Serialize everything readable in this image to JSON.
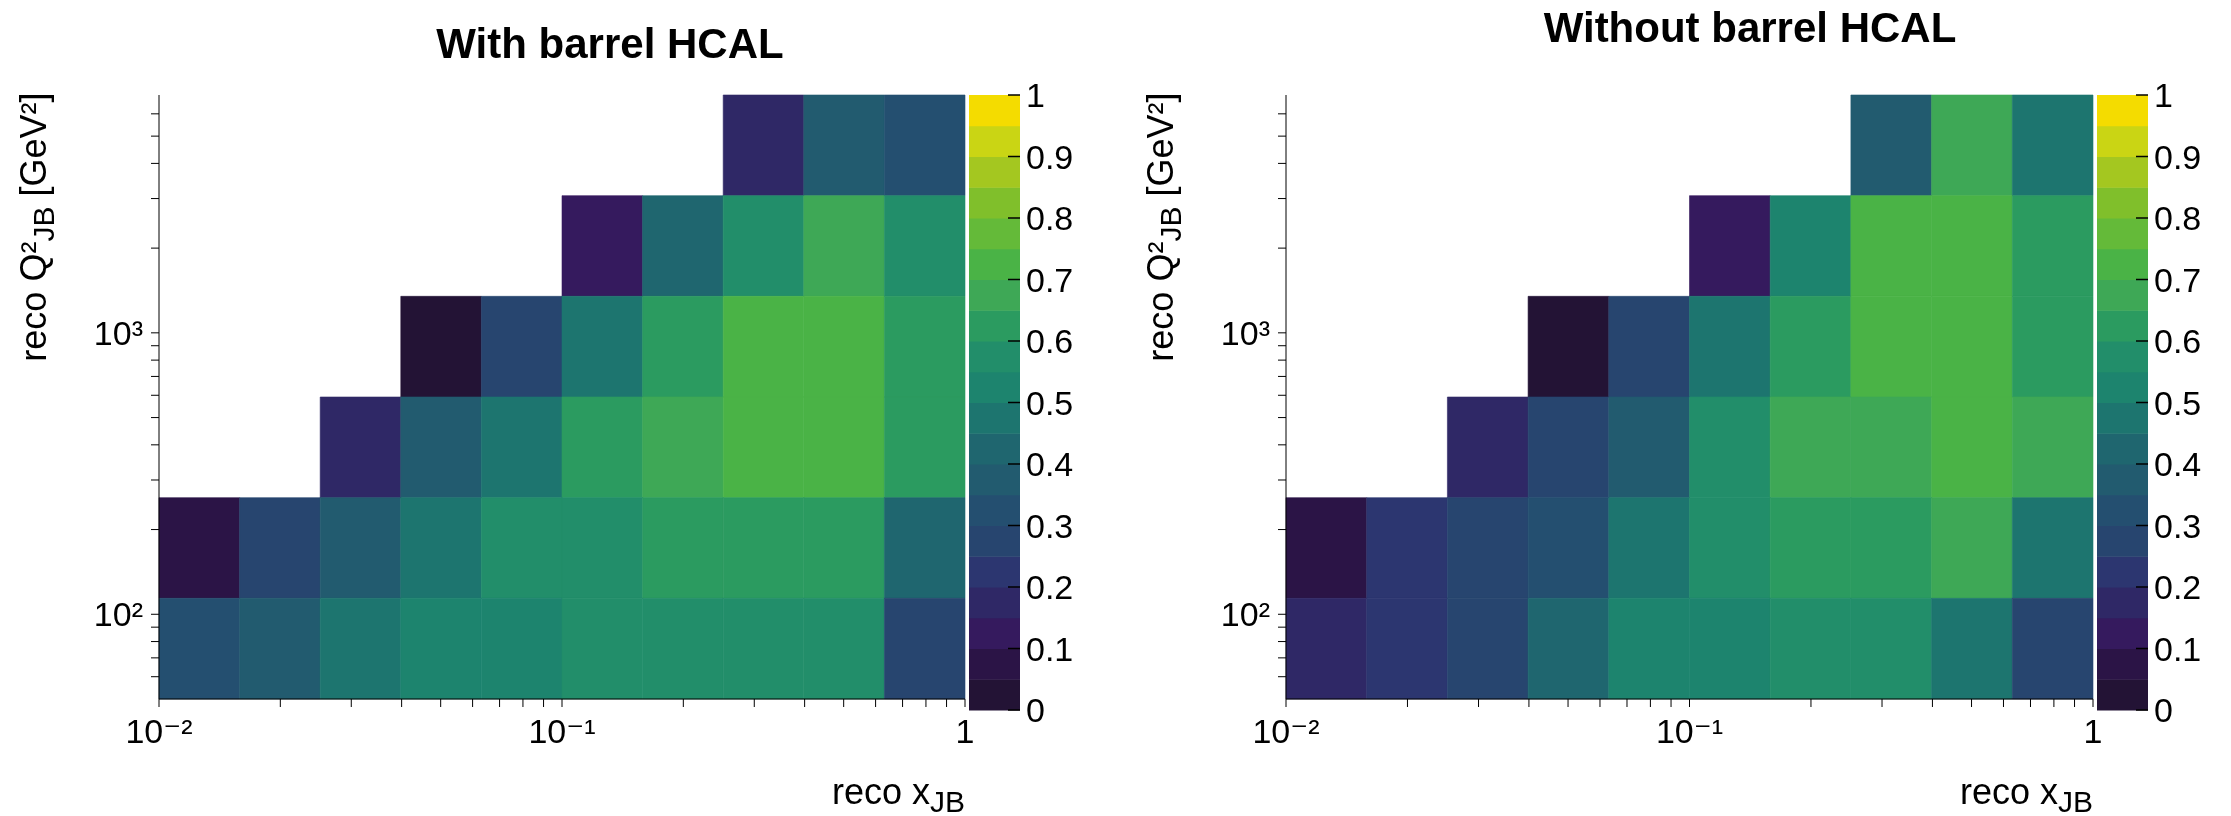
{
  "chart_data": [
    {
      "type": "heatmap",
      "title": "With barrel HCAL",
      "xlabel": "reco x$_{JB}$",
      "ylabel": "reco Q²$_{JB}$ [GeV²]",
      "log": "xy",
      "xlim": [
        0.01,
        1
      ],
      "ylim": [
        50,
        7000
      ],
      "xticks": [
        {
          "value": 0.01,
          "label": "10⁻²"
        },
        {
          "value": 0.02,
          "label": null
        },
        {
          "value": 0.03,
          "label": null
        },
        {
          "value": 0.04,
          "label": null
        },
        {
          "value": 0.05,
          "label": null
        },
        {
          "value": 0.06,
          "label": null
        },
        {
          "value": 0.07,
          "label": null
        },
        {
          "value": 0.08,
          "label": null
        },
        {
          "value": 0.09,
          "label": null
        },
        {
          "value": 0.1,
          "label": "10⁻¹"
        },
        {
          "value": 0.2,
          "label": null
        },
        {
          "value": 0.3,
          "label": null
        },
        {
          "value": 0.4,
          "label": null
        },
        {
          "value": 0.5,
          "label": null
        },
        {
          "value": 0.6,
          "label": null
        },
        {
          "value": 0.7,
          "label": null
        },
        {
          "value": 0.8,
          "label": null
        },
        {
          "value": 0.9,
          "label": null
        },
        1
      ],
      "yticks": [
        {
          "value": 60,
          "label": null
        },
        {
          "value": 70,
          "label": null
        },
        {
          "value": 80,
          "label": null
        },
        {
          "value": 90,
          "label": null
        },
        {
          "value": 100,
          "label": "10²"
        },
        {
          "value": 200,
          "label": null
        },
        {
          "value": 300,
          "label": null
        },
        {
          "value": 400,
          "label": null
        },
        {
          "value": 500,
          "label": null
        },
        {
          "value": 600,
          "label": null
        },
        {
          "value": 700,
          "label": null
        },
        {
          "value": 800,
          "label": null
        },
        {
          "value": 900,
          "label": null
        },
        {
          "value": 1000,
          "label": "10³"
        },
        {
          "value": 2000,
          "label": null
        },
        {
          "value": 3000,
          "label": null
        },
        {
          "value": 4000,
          "label": null
        },
        {
          "value": 5000,
          "label": null
        },
        {
          "value": 6000,
          "label": null
        }
      ],
      "clim": [
        0,
        1
      ],
      "cticks": [
        0,
        0.1,
        0.2,
        0.3,
        0.4,
        0.5,
        0.6,
        0.7,
        0.8,
        0.9,
        1
      ],
      "cells": [
        [
          null,
          null,
          null,
          null,
          null,
          null,
          null,
          0.17,
          0.37,
          0.32
        ],
        [
          null,
          null,
          null,
          null,
          null,
          0.12,
          0.42,
          0.57,
          0.67,
          0.57
        ],
        [
          null,
          null,
          null,
          0.02,
          0.27,
          0.47,
          0.62,
          0.72,
          0.72,
          0.62
        ],
        [
          null,
          null,
          0.17,
          0.37,
          0.47,
          0.62,
          0.67,
          0.72,
          0.72,
          0.62
        ],
        [
          0.07,
          0.27,
          0.37,
          0.47,
          0.57,
          0.57,
          0.62,
          0.62,
          0.62,
          0.42
        ],
        [
          0.32,
          0.37,
          0.47,
          0.52,
          0.52,
          0.57,
          0.57,
          0.57,
          0.57,
          0.27
        ]
      ]
    },
    {
      "type": "heatmap",
      "title": "Without barrel HCAL",
      "xlabel": "reco x$_{JB}$",
      "ylabel": "reco Q²$_{JB}$ [GeV²]",
      "log": "xy",
      "xlim": [
        0.01,
        1
      ],
      "ylim": [
        50,
        7000
      ],
      "xticks": [
        {
          "value": 0.01,
          "label": "10⁻²"
        },
        {
          "value": 0.02,
          "label": null
        },
        {
          "value": 0.03,
          "label": null
        },
        {
          "value": 0.04,
          "label": null
        },
        {
          "value": 0.05,
          "label": null
        },
        {
          "value": 0.06,
          "label": null
        },
        {
          "value": 0.07,
          "label": null
        },
        {
          "value": 0.08,
          "label": null
        },
        {
          "value": 0.09,
          "label": null
        },
        {
          "value": 0.1,
          "label": "10⁻¹"
        },
        {
          "value": 0.2,
          "label": null
        },
        {
          "value": 0.3,
          "label": null
        },
        {
          "value": 0.4,
          "label": null
        },
        {
          "value": 0.5,
          "label": null
        },
        {
          "value": 0.6,
          "label": null
        },
        {
          "value": 0.7,
          "label": null
        },
        {
          "value": 0.8,
          "label": null
        },
        {
          "value": 0.9,
          "label": null
        },
        1
      ],
      "yticks": [
        {
          "value": 60,
          "label": null
        },
        {
          "value": 70,
          "label": null
        },
        {
          "value": 80,
          "label": null
        },
        {
          "value": 90,
          "label": null
        },
        {
          "value": 100,
          "label": "10²"
        },
        {
          "value": 200,
          "label": null
        },
        {
          "value": 300,
          "label": null
        },
        {
          "value": 400,
          "label": null
        },
        {
          "value": 500,
          "label": null
        },
        {
          "value": 600,
          "label": null
        },
        {
          "value": 700,
          "label": null
        },
        {
          "value": 800,
          "label": null
        },
        {
          "value": 900,
          "label": null
        },
        {
          "value": 1000,
          "label": "10³"
        },
        {
          "value": 2000,
          "label": null
        },
        {
          "value": 3000,
          "label": null
        },
        {
          "value": 4000,
          "label": null
        },
        {
          "value": 5000,
          "label": null
        },
        {
          "value": 6000,
          "label": null
        }
      ],
      "clim": [
        0,
        1
      ],
      "cticks": [
        0,
        0.1,
        0.2,
        0.3,
        0.4,
        0.5,
        0.6,
        0.7,
        0.8,
        0.9,
        1
      ],
      "cells": [
        [
          null,
          null,
          null,
          null,
          null,
          null,
          null,
          0.37,
          0.67,
          0.47
        ],
        [
          null,
          null,
          null,
          null,
          null,
          0.12,
          0.52,
          0.72,
          0.72,
          0.62
        ],
        [
          null,
          null,
          null,
          0.02,
          0.27,
          0.47,
          0.62,
          0.72,
          0.72,
          0.62
        ],
        [
          null,
          null,
          0.17,
          0.27,
          0.37,
          0.57,
          0.67,
          0.67,
          0.72,
          0.67
        ],
        [
          0.07,
          0.22,
          0.27,
          0.32,
          0.47,
          0.57,
          0.62,
          0.62,
          0.67,
          0.47
        ],
        [
          0.17,
          0.22,
          0.27,
          0.42,
          0.52,
          0.52,
          0.57,
          0.57,
          0.47,
          0.27
        ]
      ]
    }
  ]
}
